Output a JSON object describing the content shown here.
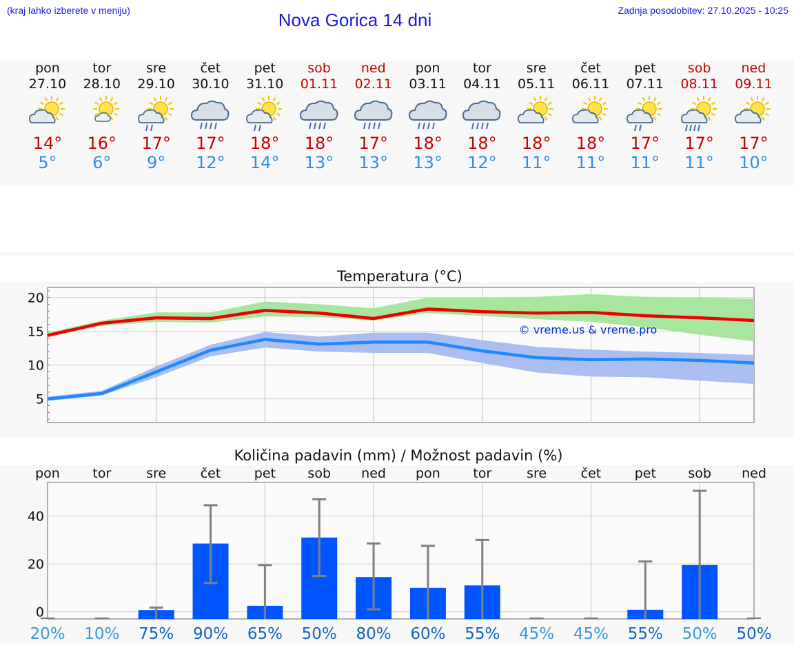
{
  "header": {
    "left_note": "(kraj lahko izberete v meniju)",
    "title": "Nova Gorica 14 dni",
    "updated": "Zadnja posodobitev: 27.10.2025 - 10:25"
  },
  "days": [
    {
      "name": "pon",
      "date": "27.10",
      "weekend": false,
      "icon": "partly-cloudy-icon",
      "tmax": "14°",
      "tmin": "5°"
    },
    {
      "name": "tor",
      "date": "28.10",
      "weekend": false,
      "icon": "mostly-sunny-icon",
      "tmax": "16°",
      "tmin": "6°"
    },
    {
      "name": "sre",
      "date": "29.10",
      "weekend": false,
      "icon": "sun-light-rain-icon",
      "tmax": "17°",
      "tmin": "9°"
    },
    {
      "name": "čet",
      "date": "30.10",
      "weekend": false,
      "icon": "cloudy-rain-icon",
      "tmax": "17°",
      "tmin": "12°"
    },
    {
      "name": "pet",
      "date": "31.10",
      "weekend": false,
      "icon": "sun-light-rain-icon",
      "tmax": "18°",
      "tmin": "14°"
    },
    {
      "name": "sob",
      "date": "01.11",
      "weekend": true,
      "icon": "cloudy-rain-icon",
      "tmax": "18°",
      "tmin": "13°"
    },
    {
      "name": "ned",
      "date": "02.11",
      "weekend": true,
      "icon": "cloudy-rain-icon",
      "tmax": "17°",
      "tmin": "13°"
    },
    {
      "name": "pon",
      "date": "03.11",
      "weekend": false,
      "icon": "cloudy-rain-icon",
      "tmax": "18°",
      "tmin": "13°"
    },
    {
      "name": "tor",
      "date": "04.11",
      "weekend": false,
      "icon": "cloudy-rain-icon",
      "tmax": "18°",
      "tmin": "12°"
    },
    {
      "name": "sre",
      "date": "05.11",
      "weekend": false,
      "icon": "partly-cloudy-icon",
      "tmax": "18°",
      "tmin": "11°"
    },
    {
      "name": "čet",
      "date": "06.11",
      "weekend": false,
      "icon": "partly-cloudy-icon",
      "tmax": "18°",
      "tmin": "11°"
    },
    {
      "name": "pet",
      "date": "07.11",
      "weekend": false,
      "icon": "sun-light-rain-icon",
      "tmax": "17°",
      "tmin": "11°"
    },
    {
      "name": "sob",
      "date": "08.11",
      "weekend": true,
      "icon": "sun-rain-icon",
      "tmax": "17°",
      "tmin": "11°"
    },
    {
      "name": "ned",
      "date": "09.11",
      "weekend": true,
      "icon": "partly-cloudy-icon",
      "tmax": "17°",
      "tmin": "10°"
    }
  ],
  "colors": {
    "max_line": "#ee0000",
    "min_line": "#1e88ff",
    "max_band": "#a8e6a0",
    "min_band": "#aabff0",
    "bar": "#0055ff",
    "error_bar": "#808080",
    "watermark": "#0033cc"
  },
  "chart_data": [
    {
      "type": "line",
      "title": "Temperatura (°C)",
      "xlabel": "",
      "ylabel": "",
      "x": [
        0,
        1,
        2,
        3,
        4,
        5,
        6,
        7,
        8,
        9,
        10,
        11,
        12,
        13
      ],
      "ylim": [
        1.5,
        21.5
      ],
      "yticks": [
        5,
        10,
        15,
        20
      ],
      "watermark": "© vreme.us & vreme.pro",
      "series": [
        {
          "name": "max",
          "values": [
            14.4,
            16.2,
            17.0,
            16.9,
            18.1,
            17.7,
            16.9,
            18.3,
            17.9,
            17.7,
            17.8,
            17.3,
            17.0,
            16.6
          ]
        },
        {
          "name": "max_range_low",
          "values": [
            14.1,
            15.8,
            16.4,
            16.3,
            17.2,
            17.1,
            16.6,
            17.7,
            17.3,
            16.8,
            16.4,
            15.6,
            14.5,
            13.5
          ]
        },
        {
          "name": "max_range_high",
          "values": [
            14.8,
            16.6,
            17.8,
            17.8,
            19.4,
            19.0,
            18.4,
            20.0,
            20.0,
            20.1,
            20.5,
            20.1,
            20.0,
            19.8
          ]
        },
        {
          "name": "min",
          "values": [
            5.0,
            5.8,
            9.0,
            12.2,
            13.8,
            13.1,
            13.4,
            13.4,
            12.1,
            11.1,
            10.8,
            10.9,
            10.7,
            10.3
          ]
        },
        {
          "name": "min_range_low",
          "values": [
            4.7,
            5.5,
            8.2,
            11.3,
            12.6,
            12.0,
            11.8,
            11.8,
            10.3,
            8.9,
            8.3,
            8.2,
            7.7,
            7.2
          ]
        },
        {
          "name": "min_range_high",
          "values": [
            5.3,
            6.2,
            9.8,
            13.0,
            14.9,
            14.2,
            14.8,
            14.8,
            13.7,
            12.7,
            12.3,
            12.0,
            11.8,
            11.5
          ]
        }
      ]
    },
    {
      "type": "bar",
      "title": "Količina padavin (mm) / Možnost padavin (%)",
      "categories": [
        "pon",
        "tor",
        "sre",
        "čet",
        "pet",
        "sob",
        "ned",
        "pon",
        "tor",
        "sre",
        "čet",
        "pet",
        "sob",
        "ned"
      ],
      "values": [
        0,
        0,
        0.7,
        28.5,
        2.5,
        31.0,
        14.5,
        10.0,
        11.0,
        0,
        0,
        0.8,
        19.5,
        0
      ],
      "error_low": [
        0,
        0,
        0,
        12.0,
        0,
        15.0,
        1.0,
        0,
        0,
        0,
        0,
        0,
        0,
        0
      ],
      "error_high": [
        0,
        0,
        1.7,
        44.5,
        19.5,
        47.0,
        28.5,
        27.5,
        30.0,
        0,
        0,
        21.0,
        50.5,
        0
      ],
      "probability": [
        "20%",
        "10%",
        "75%",
        "90%",
        "65%",
        "50%",
        "80%",
        "60%",
        "55%",
        "45%",
        "45%",
        "55%",
        "50%",
        "50%"
      ],
      "probability_colors": [
        "#3a9ad9",
        "#3a9ad9",
        "#1565c0",
        "#1565c0",
        "#1565c0",
        "#1565c0",
        "#1565c0",
        "#1565c0",
        "#1565c0",
        "#3a9ad9",
        "#3a9ad9",
        "#1565c0",
        "#3a9ad9",
        "#1565c0"
      ],
      "ylim": [
        -3,
        54
      ],
      "yticks": [
        0,
        20,
        40
      ],
      "xlabel": "",
      "ylabel": ""
    }
  ]
}
